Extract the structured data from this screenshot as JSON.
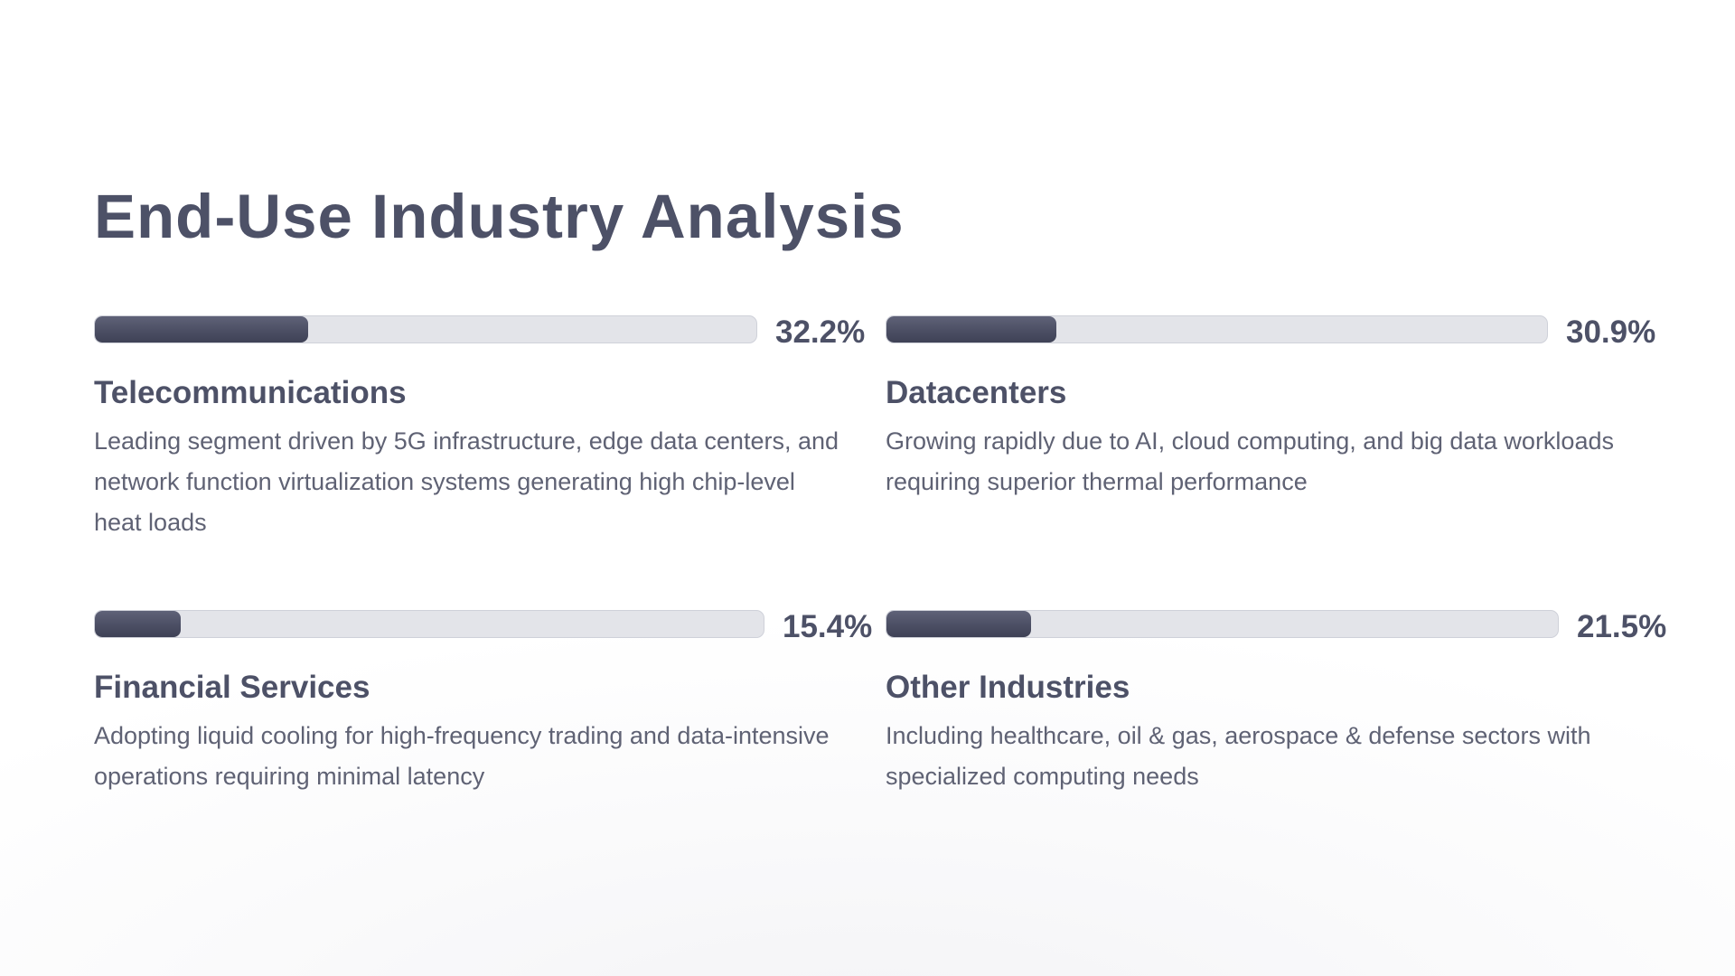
{
  "slide": {
    "title": "End-Use Industry Analysis",
    "accent_color": "#4d5167",
    "track_color": "#e3e4e9",
    "segments": [
      {
        "name": "Telecommunications",
        "percent_label": "32.2%",
        "value": 32.2,
        "description": "Leading segment driven by 5G infrastructure, edge data centers, and network function virtualization systems generating high chip-level heat loads"
      },
      {
        "name": "Datacenters",
        "percent_label": "30.9%",
        "value": 30.9,
        "description": "Growing rapidly due to AI, cloud computing, and big data workloads requiring superior thermal performance"
      },
      {
        "name": "Financial Services",
        "percent_label": "15.4%",
        "value": 15.4,
        "description": "Adopting liquid cooling for high-frequency trading and data-intensive operations requiring minimal latency"
      },
      {
        "name": "Other Industries",
        "percent_label": "21.5%",
        "value": 21.5,
        "description": "Including healthcare, oil & gas, aerospace & defense sectors with specialized computing needs"
      }
    ]
  }
}
